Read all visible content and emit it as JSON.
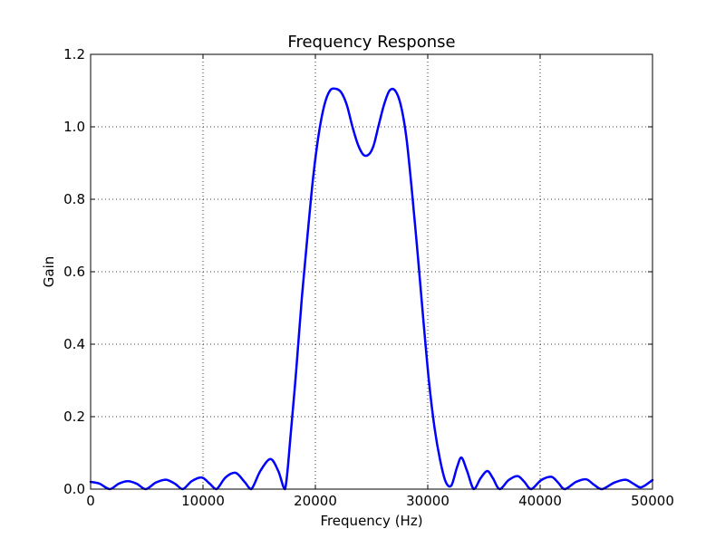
{
  "chart_data": {
    "type": "line",
    "title": "Frequency Response",
    "xlabel": "Frequency (Hz)",
    "ylabel": "Gain",
    "xlim": [
      0,
      50000
    ],
    "ylim": [
      0,
      1.2
    ],
    "grid": true,
    "grid_style": "dotted",
    "x_ticks": [
      0,
      10000,
      20000,
      30000,
      40000,
      50000
    ],
    "x_tick_labels": [
      "0",
      "10000",
      "20000",
      "30000",
      "40000",
      "50000"
    ],
    "y_ticks": [
      0,
      0.2,
      0.4,
      0.6,
      0.8,
      1.0,
      1.2
    ],
    "y_tick_labels": [
      "0.0",
      "0.2",
      "0.4",
      "0.6",
      "0.8",
      "1.0",
      "1.2"
    ],
    "line_color": "#0000ff",
    "series": [
      {
        "x": [
          0,
          800,
          1700,
          2500,
          3300,
          4100,
          4900,
          5800,
          6700,
          7500,
          8200,
          9000,
          9900,
          10600,
          11200,
          12000,
          12900,
          13700,
          14300,
          15100,
          16000,
          16700,
          17300,
          17800,
          18300,
          18800,
          19300,
          19800,
          20300,
          20800,
          21300,
          21800,
          22300,
          22800,
          23300,
          23800,
          24300,
          24800,
          25200,
          25600,
          26100,
          26600,
          27100,
          27600,
          28100,
          28600,
          29100,
          29600,
          30100,
          30600,
          31100,
          31600,
          32100,
          32600,
          33000,
          33500,
          34100,
          34700,
          35300,
          35800,
          36400,
          37200,
          38000,
          38600,
          39200,
          40100,
          41000,
          41600,
          42200,
          43200,
          44100,
          44800,
          45500,
          46600,
          47600,
          48300,
          49000,
          50000
        ],
        "y": [
          0.02,
          0.015,
          0.0,
          0.015,
          0.022,
          0.015,
          0.0,
          0.018,
          0.026,
          0.015,
          0.0,
          0.022,
          0.032,
          0.015,
          0.0,
          0.032,
          0.045,
          0.02,
          0.0,
          0.05,
          0.083,
          0.05,
          0.0,
          0.15,
          0.33,
          0.53,
          0.7,
          0.86,
          0.98,
          1.06,
          1.1,
          1.105,
          1.095,
          1.06,
          1.0,
          0.95,
          0.922,
          0.925,
          0.95,
          1.0,
          1.06,
          1.1,
          1.1,
          1.06,
          0.97,
          0.82,
          0.65,
          0.47,
          0.3,
          0.17,
          0.08,
          0.02,
          0.01,
          0.06,
          0.087,
          0.05,
          0.0,
          0.03,
          0.05,
          0.03,
          0.0,
          0.025,
          0.036,
          0.02,
          0.0,
          0.025,
          0.034,
          0.018,
          0.0,
          0.02,
          0.027,
          0.012,
          0.0,
          0.018,
          0.026,
          0.015,
          0.005,
          0.025
        ]
      }
    ]
  }
}
